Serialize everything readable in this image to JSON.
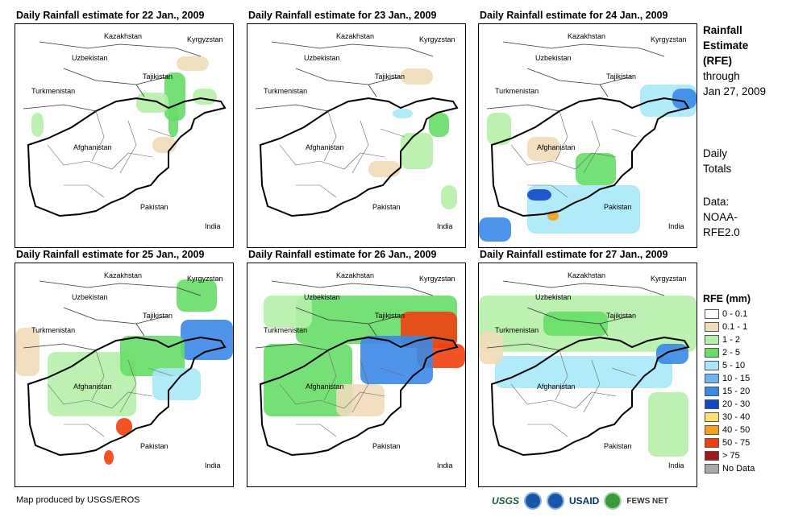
{
  "panels": [
    {
      "title": "Daily Rainfall estimate for 22 Jan., 2009",
      "day": 22
    },
    {
      "title": "Daily Rainfall estimate for 23 Jan., 2009",
      "day": 23
    },
    {
      "title": "Daily Rainfall estimate for 24 Jan., 2009",
      "day": 24
    },
    {
      "title": "Daily Rainfall estimate for 25 Jan., 2009",
      "day": 25
    },
    {
      "title": "Daily Rainfall estimate for 26 Jan., 2009",
      "day": 26
    },
    {
      "title": "Daily Rainfall estimate for 27 Jan., 2009",
      "day": 27
    }
  ],
  "country_labels": {
    "kazakhstan": "Kazakhstan",
    "kyrgyzstan": "Kyrgyzstan",
    "uzbekistan": "Uzbekistan",
    "tajikistan": "Tajikistan",
    "turkmenistan": "Turkmenistan",
    "afghanistan": "Afghanistan",
    "pakistan": "Pakistan",
    "india": "India"
  },
  "sidebar": {
    "title_lines": [
      "Rainfall",
      "Estimate",
      "(RFE)"
    ],
    "through_lines": [
      "through",
      "Jan 27, 2009"
    ],
    "daily_lines": [
      "Daily",
      "Totals"
    ],
    "data_lines": [
      "Data:",
      "NOAA-",
      "RFE2.0"
    ]
  },
  "legend": {
    "title": "RFE (mm)",
    "items": [
      {
        "label": "0 - 0.1",
        "color": "#ffffff"
      },
      {
        "label": "0.1 - 1",
        "color": "#f0dcb9"
      },
      {
        "label": "1 - 2",
        "color": "#b5f0a8"
      },
      {
        "label": "2 - 5",
        "color": "#66dd66"
      },
      {
        "label": "5 - 10",
        "color": "#a8e8f8"
      },
      {
        "label": "10 - 15",
        "color": "#6cb6f4"
      },
      {
        "label": "15 - 20",
        "color": "#3a88e8"
      },
      {
        "label": "20 - 30",
        "color": "#1048c8"
      },
      {
        "label": "30 - 40",
        "color": "#fde070"
      },
      {
        "label": "40 - 50",
        "color": "#f4a018"
      },
      {
        "label": "50 - 75",
        "color": "#f04010"
      },
      {
        "label": "> 75",
        "color": "#a01818"
      },
      {
        "label": "No Data",
        "color": "#a8a8a8"
      }
    ]
  },
  "footer": {
    "credit": "Map produced by USGS/EROS",
    "logos": [
      "USGS",
      "USAID",
      "FEWS NET"
    ]
  }
}
